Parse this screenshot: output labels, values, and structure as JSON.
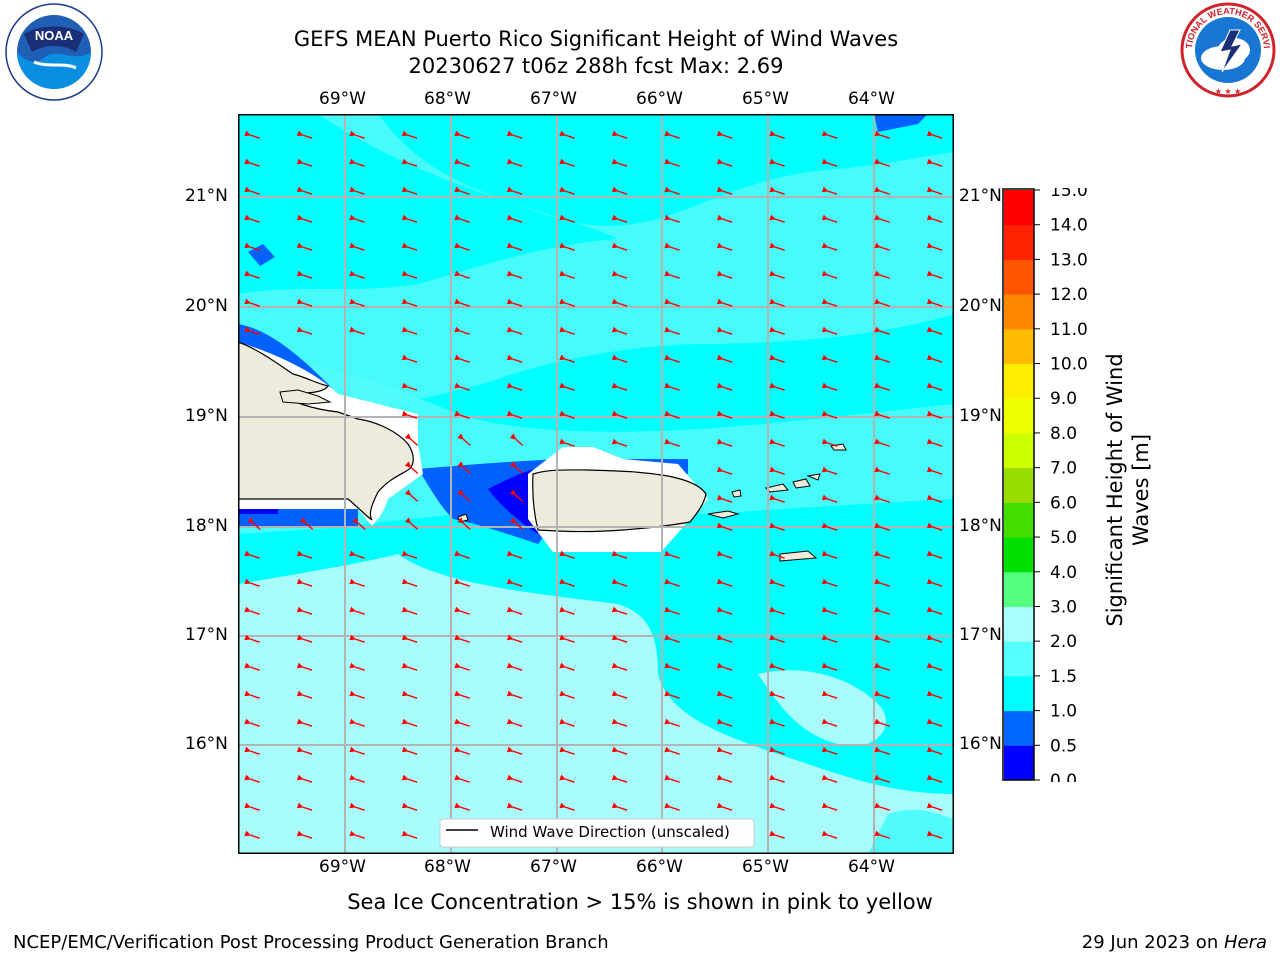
{
  "header": {
    "title": "GEFS MEAN Puerto Rico Significant Height of Wind Waves",
    "subtitle": "20230627 t06z 288h fcst   Max: 2.69"
  },
  "logos": {
    "left": {
      "name": "noaa-logo",
      "text": "NOAA",
      "ring_text": "NATIONAL OCEANIC AND ATMOSPHERIC ADMINISTRATION · U.S. DEPARTMENT OF COMMERCE"
    },
    "right": {
      "name": "nws-logo",
      "ring_text": "NATIONAL WEATHER SERVICE"
    }
  },
  "map": {
    "lon_ticks": [
      "69°W",
      "68°W",
      "67°W",
      "66°W",
      "65°W",
      "64°W"
    ],
    "lat_ticks": [
      "21°N",
      "20°N",
      "19°N",
      "18°N",
      "17°N",
      "16°N"
    ],
    "legend_label": "Wind Wave Direction (unscaled)",
    "colors": {
      "ocean_base": "#00ffff",
      "band_1_5_2": "#50fbfb",
      "band_2_3": "#a8fcfc",
      "band_0_5_1": "#0061ff",
      "band_0_0_5": "#0000ff",
      "land": "#efebdc",
      "no_data": "#ffffff",
      "arrow": "#ff0000",
      "grid": "#b4b4b4"
    }
  },
  "colorbar": {
    "levels": [
      "0.0",
      "0.5",
      "1.0",
      "1.5",
      "2.0",
      "3.0",
      "4.0",
      "5.0",
      "6.0",
      "7.0",
      "8.0",
      "9.0",
      "10.0",
      "11.0",
      "12.0",
      "13.0",
      "14.0",
      "15.0"
    ],
    "colors": [
      "#0000ff",
      "#0066ff",
      "#00ffff",
      "#55ffff",
      "#aaffff",
      "#55ff80",
      "#00e000",
      "#44dd00",
      "#99dd00",
      "#ccff00",
      "#eeff00",
      "#ffee00",
      "#ffbb00",
      "#ff8800",
      "#ff5500",
      "#ff2200",
      "#ff0000"
    ],
    "label": "Significant Height of Wind Waves [m]",
    "label_line1": "Significant Height of Wind",
    "label_line2": "Waves [m]"
  },
  "notes": {
    "sea_ice": "Sea Ice Concentration > 15% is shown in pink to yellow"
  },
  "footer": {
    "left": "NCEP/EMC/Verification Post Processing Product Generation Branch",
    "right_prefix": "29 Jun 2023 on ",
    "right_host": "Hera"
  }
}
